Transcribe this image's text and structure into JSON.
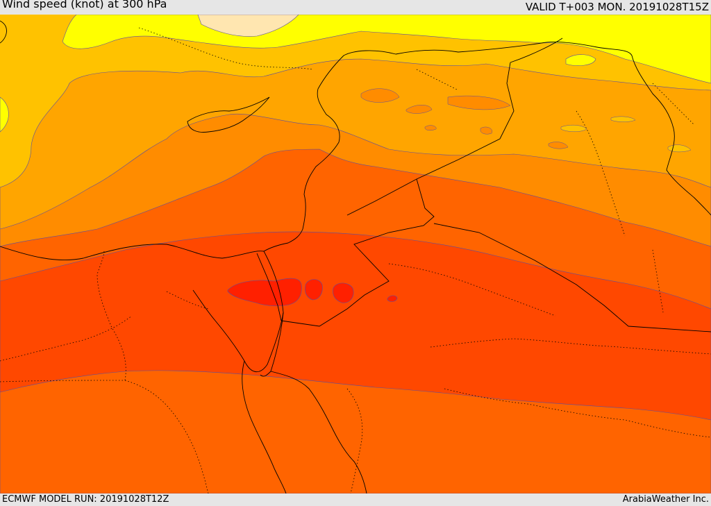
{
  "header": {
    "title": "Wind speed (knot) at 300 hPa",
    "valid_time": "VALID T+003 MON. 20191028T15Z"
  },
  "footer": {
    "model_run": "ECMWF MODEL RUN: 20191028T12Z",
    "credit": "ArabiaWeather Inc."
  },
  "colors": {
    "band_1": "#ffe6b0",
    "band_2": "#ffff00",
    "band_3": "#ffd400",
    "band_4": "#ffc200",
    "band_5": "#ffa500",
    "band_6": "#ff8c00",
    "band_7": "#ff6400",
    "band_8": "#ff4800",
    "band_9": "#ff2000",
    "contour_line": "#5a4ea0",
    "border_line": "#000000"
  }
}
